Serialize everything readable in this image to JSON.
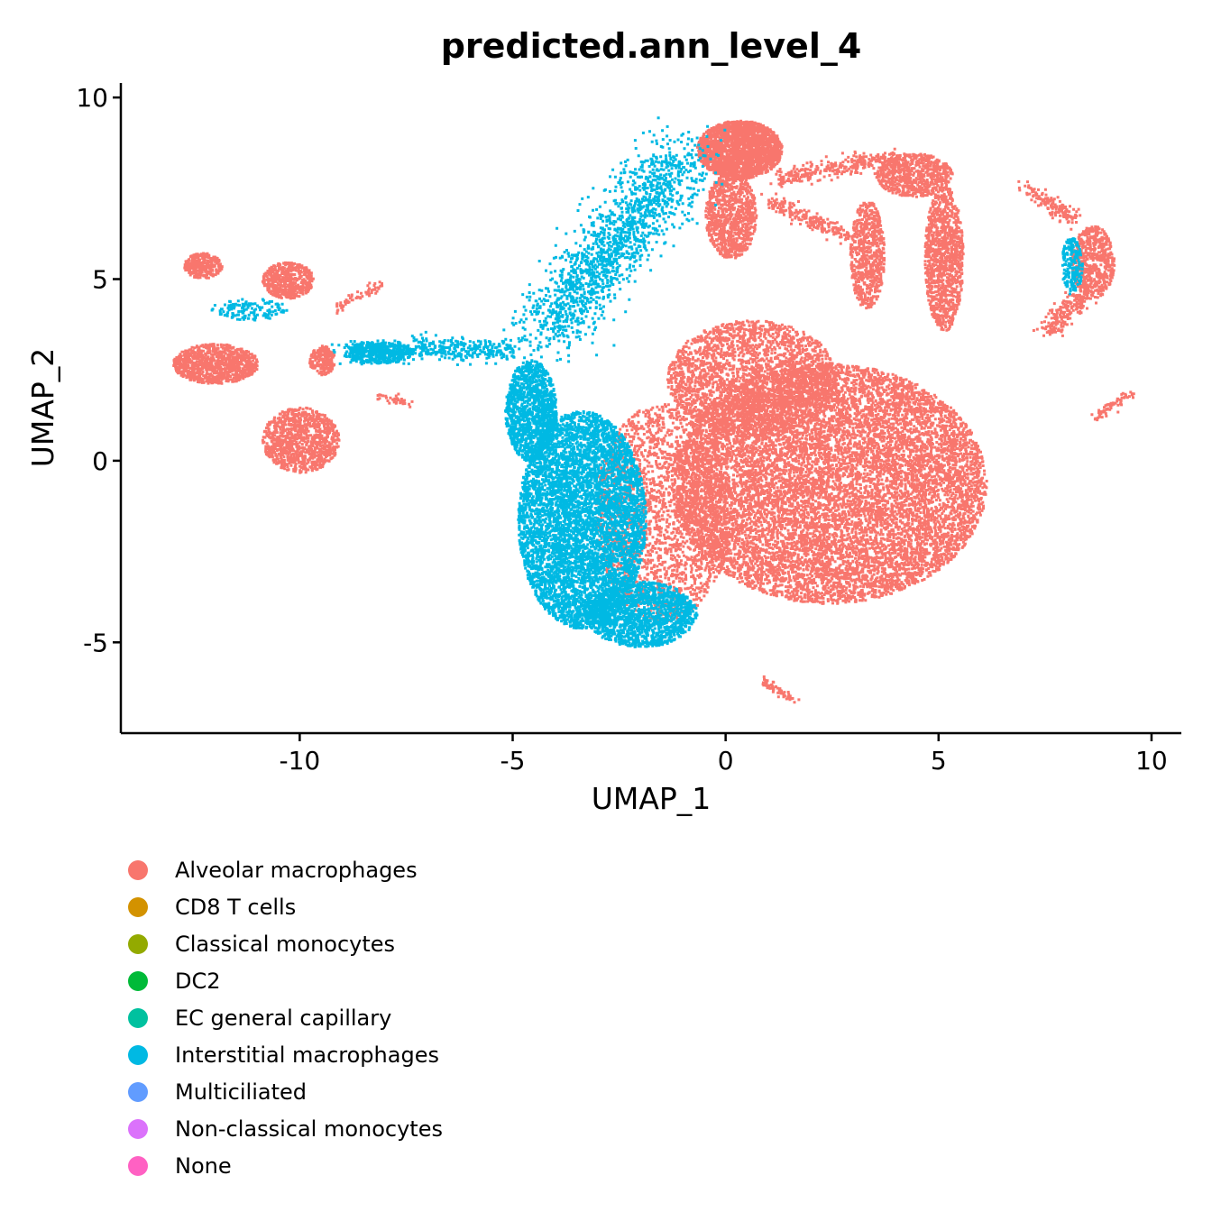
{
  "chart_data": {
    "type": "scatter",
    "title": "predicted.ann_level_4",
    "xlabel": "UMAP_1",
    "ylabel": "UMAP_2",
    "xlim": [
      -14.2,
      10.7
    ],
    "ylim": [
      -7.5,
      10.4
    ],
    "xticks": [
      -10,
      -5,
      0,
      5,
      10
    ],
    "xtick_labels": [
      "-10",
      "-5",
      "0",
      "5",
      "10"
    ],
    "yticks": [
      -5,
      0,
      5,
      10
    ],
    "ytick_labels": [
      "-5",
      "0",
      "5",
      "10"
    ],
    "legend_position": "bottom",
    "legend": [
      {
        "label": "Alveolar macrophages",
        "color": "#F8766D"
      },
      {
        "label": "CD8 T cells",
        "color": "#D39200"
      },
      {
        "label": "Classical monocytes",
        "color": "#93AA00"
      },
      {
        "label": "DC2",
        "color": "#00BA38"
      },
      {
        "label": "EC general capillary",
        "color": "#00C19F"
      },
      {
        "label": "Interstitial macrophages",
        "color": "#00B9E3"
      },
      {
        "label": "Multiciliated",
        "color": "#619CFF"
      },
      {
        "label": "Non-classical monocytes",
        "color": "#DB72FB"
      },
      {
        "label": "None",
        "color": "#FF61C3"
      }
    ],
    "clusters": [
      {
        "series": "Alveolar macrophages",
        "cx": 2.4,
        "cy": -0.6,
        "rx": 3.7,
        "ry": 3.3,
        "n": 11000
      },
      {
        "series": "Alveolar macrophages",
        "cx": 0.6,
        "cy": 2.3,
        "rx": 2.0,
        "ry": 1.6,
        "n": 2500
      },
      {
        "series": "Alveolar macrophages",
        "cx": -1.5,
        "cy": -1.4,
        "rx": 1.6,
        "ry": 3.0,
        "n": 2200
      },
      {
        "series": "Interstitial macrophages",
        "cx": -3.4,
        "cy": -1.6,
        "rx": 1.5,
        "ry": 3.0,
        "n": 5500
      },
      {
        "series": "Interstitial macrophages",
        "cx": -4.6,
        "cy": 1.4,
        "rx": 0.6,
        "ry": 1.4,
        "n": 1300
      },
      {
        "series": "Interstitial macrophages",
        "cx": -2.0,
        "cy": -4.2,
        "rx": 1.3,
        "ry": 0.9,
        "n": 1500
      },
      {
        "series": "Alveolar macrophages",
        "cx": 0.3,
        "cy": 8.6,
        "rx": 1.0,
        "ry": 0.8,
        "n": 2200
      },
      {
        "series": "Alveolar macrophages",
        "cx": 0.1,
        "cy": 6.8,
        "rx": 0.6,
        "ry": 1.2,
        "n": 900
      },
      {
        "series": "Alveolar macrophages",
        "cx": 4.4,
        "cy": 7.9,
        "rx": 0.9,
        "ry": 0.6,
        "n": 700
      },
      {
        "series": "Alveolar macrophages",
        "cx": 5.1,
        "cy": 5.6,
        "rx": 0.45,
        "ry": 2.0,
        "n": 1100
      },
      {
        "series": "Alveolar macrophages",
        "cx": 3.3,
        "cy": 5.7,
        "rx": 0.4,
        "ry": 1.5,
        "n": 650
      },
      {
        "series": "Alveolar macrophages",
        "cx": 8.6,
        "cy": 5.5,
        "rx": 0.5,
        "ry": 1.0,
        "n": 650
      },
      {
        "series": "Alveolar macrophages",
        "cx": -12.3,
        "cy": 5.4,
        "rx": 0.45,
        "ry": 0.35,
        "n": 300
      },
      {
        "series": "Alveolar macrophages",
        "cx": -10.3,
        "cy": 5.0,
        "rx": 0.6,
        "ry": 0.5,
        "n": 550
      },
      {
        "series": "Alveolar macrophages",
        "cx": -12.0,
        "cy": 2.7,
        "rx": 1.0,
        "ry": 0.55,
        "n": 1000
      },
      {
        "series": "Alveolar macrophages",
        "cx": -10.0,
        "cy": 0.6,
        "rx": 0.9,
        "ry": 0.9,
        "n": 1000
      },
      {
        "series": "Alveolar macrophages",
        "cx": -9.5,
        "cy": 2.8,
        "rx": 0.3,
        "ry": 0.4,
        "n": 200
      },
      {
        "series": "Interstitial macrophages",
        "cx": -8.2,
        "cy": 3.0,
        "rx": 0.8,
        "ry": 0.3,
        "n": 350
      },
      {
        "series": "Interstitial macrophages",
        "cx": -11.2,
        "cy": 4.2,
        "rx": 0.9,
        "ry": 0.3,
        "n": 150
      },
      {
        "series": "Interstitial macrophages",
        "cx": 8.1,
        "cy": 5.4,
        "rx": 0.25,
        "ry": 0.8,
        "n": 200
      }
    ],
    "streams": [
      {
        "series": "Interstitial macrophages",
        "x0": -4.2,
        "y0": 3.6,
        "x1": -1.1,
        "y1": 8.4,
        "spread": 0.45,
        "n": 1600
      },
      {
        "series": "Interstitial macrophages",
        "x0": -9.0,
        "y0": 3.1,
        "x1": -5.0,
        "y1": 3.1,
        "spread": 0.15,
        "n": 500
      },
      {
        "series": "Alveolar macrophages",
        "x0": 1.2,
        "y0": 7.8,
        "x1": 4.0,
        "y1": 8.4,
        "spread": 0.12,
        "n": 300
      },
      {
        "series": "Alveolar macrophages",
        "x0": 1.0,
        "y0": 7.2,
        "x1": 2.8,
        "y1": 6.2,
        "spread": 0.12,
        "n": 200
      },
      {
        "series": "Alveolar macrophages",
        "x0": 7.5,
        "y0": 3.6,
        "x1": 8.4,
        "y1": 4.6,
        "spread": 0.15,
        "n": 200
      },
      {
        "series": "Alveolar macrophages",
        "x0": 7.0,
        "y0": 7.6,
        "x1": 8.2,
        "y1": 6.6,
        "spread": 0.12,
        "n": 150
      },
      {
        "series": "Alveolar macrophages",
        "x0": 8.6,
        "y0": 1.2,
        "x1": 9.5,
        "y1": 1.9,
        "spread": 0.06,
        "n": 60
      },
      {
        "series": "Alveolar macrophages",
        "x0": 0.8,
        "y0": -6.0,
        "x1": 1.6,
        "y1": -6.6,
        "spread": 0.06,
        "n": 60
      },
      {
        "series": "Alveolar macrophages",
        "x0": -8.2,
        "y0": 1.8,
        "x1": -7.4,
        "y1": 1.6,
        "spread": 0.06,
        "n": 40
      },
      {
        "series": "Alveolar macrophages",
        "x0": -9.2,
        "y0": 4.2,
        "x1": -8.1,
        "y1": 4.9,
        "spread": 0.06,
        "n": 60
      }
    ]
  }
}
